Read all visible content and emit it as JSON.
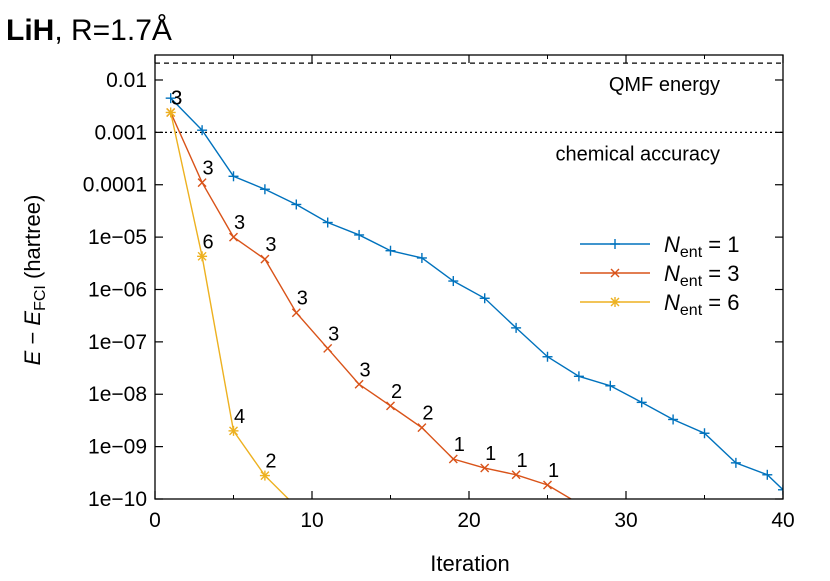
{
  "chart_data": {
    "type": "line",
    "title": {
      "strong": "LiH",
      "rest": ", R=1.7Å"
    },
    "xlabel": "Iteration",
    "ylabel": {
      "parts": [
        {
          "t": "E",
          "italic": true
        },
        {
          "t": " − ",
          "italic": false
        },
        {
          "t": "E",
          "italic": true
        },
        {
          "t": "FCI",
          "sub": true
        },
        {
          "t": " (hartree)",
          "italic": false
        }
      ]
    },
    "xlim": [
      0,
      40
    ],
    "ylim": [
      1e-10,
      0.03
    ],
    "yscale": "log",
    "xticks": [
      0,
      10,
      20,
      30,
      40
    ],
    "xtick_labels": [
      "0",
      "10",
      "20",
      "30",
      "40"
    ],
    "yticks": [
      0.01,
      0.001,
      0.0001,
      1e-05,
      1e-06,
      1e-07,
      1e-08,
      1e-09,
      1e-10
    ],
    "ytick_labels": [
      "0.01",
      "0.001",
      "0.0001",
      "1e−05",
      "1e−06",
      "1e−07",
      "1e−08",
      "1e−09",
      "1e−10"
    ],
    "reference_lines": [
      {
        "y": 0.021,
        "style": "dashed",
        "label": "QMF energy"
      },
      {
        "y": 0.001,
        "style": "dotted",
        "label": "chemical accuracy"
      }
    ],
    "legend": {
      "placement": "right",
      "entries": [
        {
          "prefix": "N",
          "sub": "ent",
          "suffix": " = 1"
        },
        {
          "prefix": "N",
          "sub": "ent",
          "suffix": " = 3"
        },
        {
          "prefix": "N",
          "sub": "ent",
          "suffix": " = 6"
        }
      ]
    },
    "series": [
      {
        "color": "#0072bd",
        "marker": "plus",
        "x": [
          1,
          3,
          5,
          7,
          9,
          11,
          13,
          15,
          17,
          19,
          21,
          23,
          25,
          27,
          29,
          31,
          33,
          35,
          37,
          39,
          40
        ],
        "y": [
          0.0045,
          0.0011,
          0.000145,
          8.2e-05,
          4.2e-05,
          1.9e-05,
          1.1e-05,
          5.5e-06,
          4e-06,
          1.45e-06,
          6.8e-07,
          1.85e-07,
          5.2e-08,
          2.2e-08,
          1.45e-08,
          7e-09,
          3.3e-09,
          1.8e-09,
          4.9e-10,
          2.9e-10,
          1.5e-10
        ]
      },
      {
        "color": "#d95319",
        "marker": "cross",
        "x": [
          1,
          3,
          5,
          7,
          9,
          11,
          13,
          15,
          17,
          19,
          21,
          23,
          25,
          26.5
        ],
        "y": [
          0.0024,
          0.00011,
          1e-05,
          3.8e-06,
          3.6e-07,
          7.5e-08,
          1.55e-08,
          6e-09,
          2.3e-09,
          5.8e-10,
          3.9e-10,
          2.9e-10,
          1.85e-10,
          1e-10
        ],
        "point_labels": [
          "3",
          "3",
          "3",
          "3",
          "3",
          "3",
          "3",
          "2",
          "2",
          "1",
          "1",
          "1",
          "1",
          ""
        ]
      },
      {
        "color": "#edb120",
        "marker": "star",
        "x": [
          1,
          3,
          5,
          7,
          8.5
        ],
        "y": [
          0.0024,
          4.3e-06,
          2e-09,
          2.8e-10,
          1e-10
        ],
        "point_labels": [
          "3",
          "6",
          "4",
          "2",
          ""
        ]
      }
    ]
  }
}
